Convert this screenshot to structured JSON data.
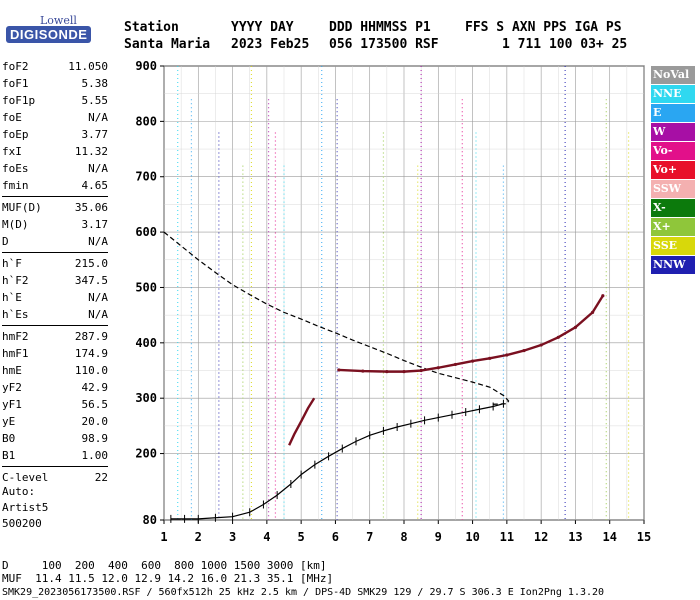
{
  "logo": {
    "line1": "Lowell",
    "line2": "DIGISONDE"
  },
  "header": {
    "labels": [
      "Station",
      "YYYY DAY",
      "DDD HHMMSS P1",
      "FFS S AXN PPS IGA PS"
    ],
    "values": [
      "Santa Maria",
      "2023 Feb25",
      "056 173500 RSF",
      "1 711 100 03+ 25"
    ]
  },
  "params": {
    "group1": [
      {
        "name": "foF2",
        "value": "11.050"
      },
      {
        "name": "foF1",
        "value": "5.38"
      },
      {
        "name": "foF1p",
        "value": "5.55"
      },
      {
        "name": "foE",
        "value": "N/A"
      },
      {
        "name": "foEp",
        "value": "3.77"
      },
      {
        "name": "fxI",
        "value": "11.32"
      },
      {
        "name": "foEs",
        "value": "N/A"
      },
      {
        "name": "fmin",
        "value": "4.65"
      }
    ],
    "group2": [
      {
        "name": "MUF(D)",
        "value": "35.06"
      },
      {
        "name": "M(D)",
        "value": "3.17"
      },
      {
        "name": "D",
        "value": "N/A"
      }
    ],
    "group3": [
      {
        "name": "h`F",
        "value": "215.0"
      },
      {
        "name": "h`F2",
        "value": "347.5"
      },
      {
        "name": "h`E",
        "value": "N/A"
      },
      {
        "name": "h`Es",
        "value": "N/A"
      }
    ],
    "group4": [
      {
        "name": "hmF2",
        "value": "287.9"
      },
      {
        "name": "hmF1",
        "value": "174.9"
      },
      {
        "name": "hmE",
        "value": "110.0"
      },
      {
        "name": "yF2",
        "value": "42.9"
      },
      {
        "name": "yF1",
        "value": "56.5"
      },
      {
        "name": "yE",
        "value": "20.0"
      },
      {
        "name": "B0",
        "value": "98.9"
      },
      {
        "name": "B1",
        "value": "1.00"
      }
    ],
    "group5": [
      {
        "name": "C-level",
        "value": "22"
      }
    ]
  },
  "autoscaling": [
    "Auto:",
    "Artist5",
    "500200"
  ],
  "legend": [
    {
      "label": "NoVal",
      "color": "#9a9a9a"
    },
    {
      "label": "NNE",
      "color": "#2fd8f0"
    },
    {
      "label": "E",
      "color": "#2aa6f2"
    },
    {
      "label": "W",
      "color": "#a70fa5"
    },
    {
      "label": "Vo-",
      "color": "#e2108a"
    },
    {
      "label": "Vo+",
      "color": "#e8102a"
    },
    {
      "label": "SSW",
      "color": "#f4b0b0"
    },
    {
      "label": "X-",
      "color": "#0c7a0c"
    },
    {
      "label": "X+",
      "color": "#8fc63a"
    },
    {
      "label": "SSE",
      "color": "#d8d80a"
    },
    {
      "label": "NNW",
      "color": "#1f1fb0"
    }
  ],
  "footer": {
    "line1": "D     100  200  400  600  800 1000 1500 3000 [km]",
    "line2": "MUF  11.4 11.5 12.0 12.9 14.2 16.0 21.3 35.1 [MHz]",
    "line3": "SMK29_2023056173500.RSF / 560fx512h 25 kHz 2.5 km / DPS-4D SMK29 129 / 29.7 S 306.3 E Ion2Png 1.3.20"
  },
  "chart_data": {
    "type": "scatter",
    "xlim": [
      1,
      15
    ],
    "ylim": [
      80,
      900
    ],
    "xticks": [
      1,
      2,
      3,
      4,
      5,
      6,
      7,
      8,
      9,
      10,
      11,
      12,
      13,
      14,
      15
    ],
    "yticks": [
      80,
      200,
      300,
      400,
      500,
      600,
      700,
      800,
      900
    ],
    "grid": true,
    "series": [
      {
        "color": "#000000",
        "x": [
          1.2,
          1.6,
          2.0,
          2.5,
          3.0,
          3.5,
          3.9,
          4.3,
          4.7,
          5.0,
          5.4,
          5.8,
          6.2,
          6.6,
          7.0,
          7.4,
          7.8,
          8.2,
          8.6,
          9.0,
          9.4,
          9.8,
          10.2,
          10.6,
          10.9
        ],
        "y": [
          82,
          82,
          82,
          84,
          86,
          94,
          108,
          125,
          145,
          162,
          180,
          195,
          209,
          222,
          233,
          241,
          248,
          254,
          260,
          265,
          270,
          275,
          280,
          285,
          290
        ]
      },
      {
        "color": "#000000",
        "x": [
          1.0,
          1.5,
          2.0,
          2.5,
          3.0,
          3.5,
          4.0,
          4.5,
          5.0,
          5.5,
          6.0,
          6.5,
          7.0,
          7.5,
          8.0,
          8.5,
          9.0,
          9.5,
          10.0,
          10.5,
          10.9,
          11.05,
          11.0,
          10.6
        ],
        "y": [
          600,
          575,
          550,
          527,
          505,
          487,
          470,
          455,
          443,
          430,
          418,
          405,
          393,
          381,
          368,
          356,
          345,
          337,
          329,
          320,
          305,
          295,
          290,
          289
        ]
      },
      {
        "color": "#7a1020",
        "x": [
          6.1,
          6.8,
          7.5,
          8.0,
          8.5,
          9.0,
          9.5,
          10.0,
          10.5,
          11.0,
          11.5,
          12.0,
          12.5,
          13.0,
          13.5,
          13.8
        ],
        "y": [
          351,
          349,
          348,
          348,
          350,
          355,
          361,
          367,
          372,
          378,
          386,
          396,
          410,
          428,
          455,
          485
        ]
      },
      {
        "color": "#7a1020",
        "x": [
          4.65,
          4.8,
          5.0,
          5.2,
          5.38
        ],
        "y": [
          215,
          235,
          258,
          282,
          300
        ]
      }
    ]
  }
}
